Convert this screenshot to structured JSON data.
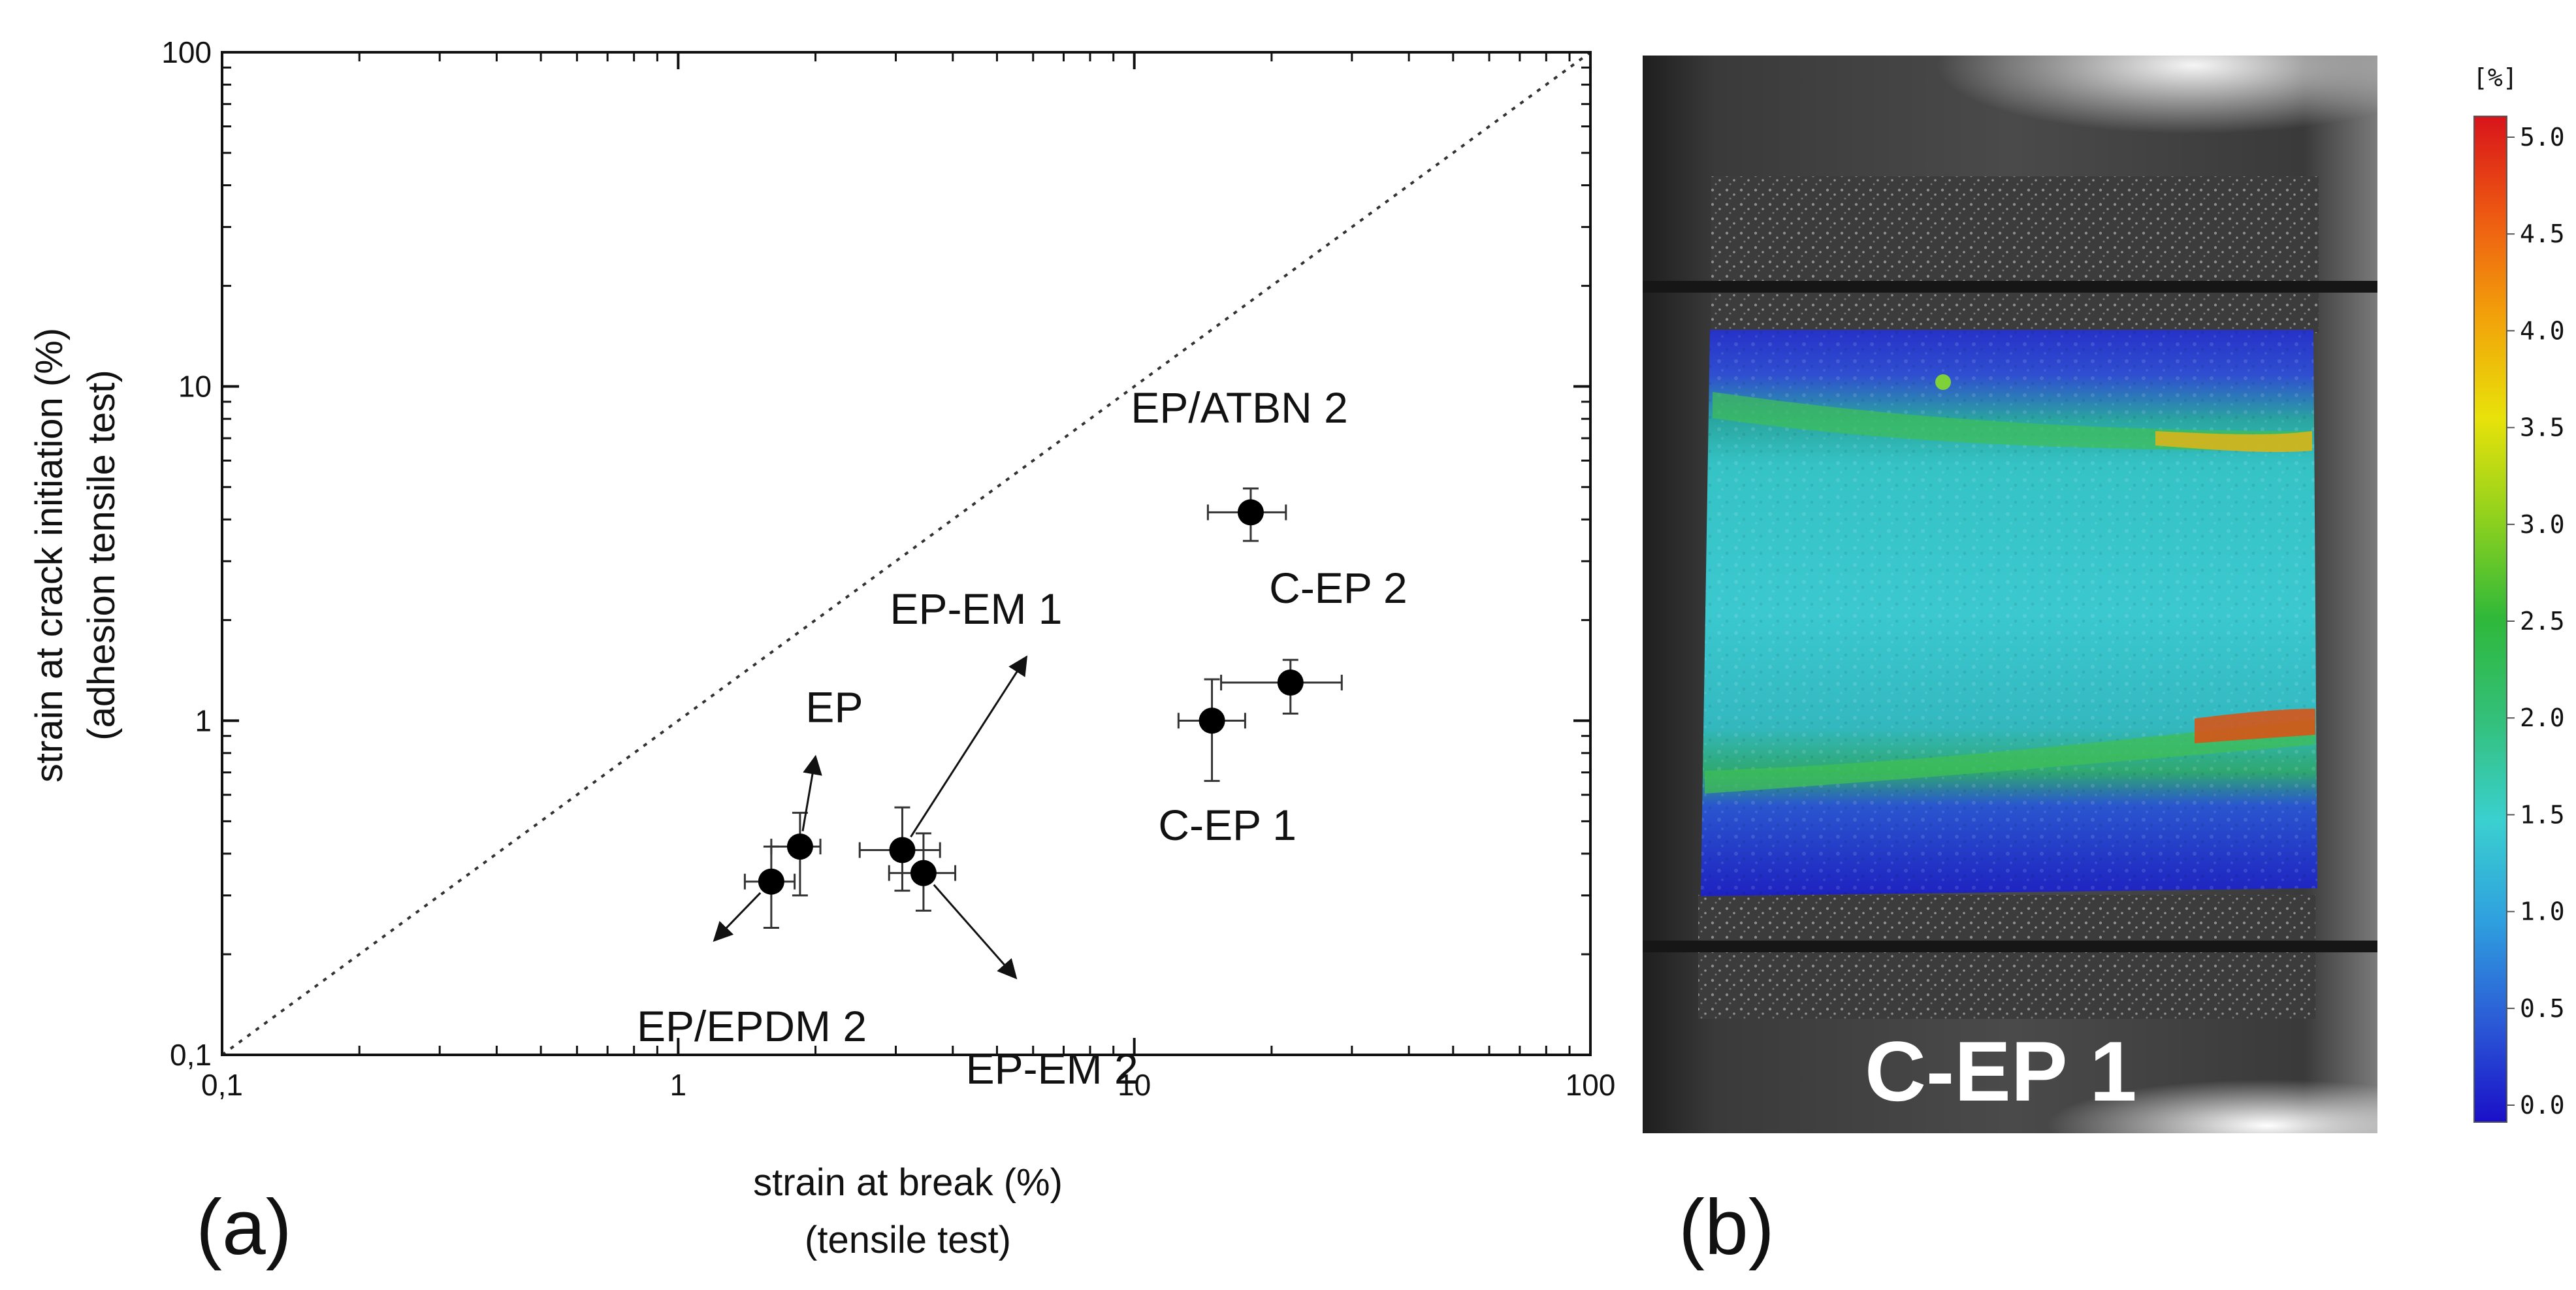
{
  "chart_data": [
    {
      "type": "scatter",
      "panel_label": "(a)",
      "xlabel": [
        "strain at break (%)",
        "(tensile test)"
      ],
      "ylabel": [
        "strain at crack initiation (%)",
        "(adhesion tensile test)"
      ],
      "x_scale": "log",
      "y_scale": "log",
      "xlim": [
        0.1,
        100
      ],
      "ylim": [
        0.1,
        100
      ],
      "x_ticks": [
        0.1,
        1,
        10,
        100
      ],
      "x_tick_labels": [
        "0,1",
        "1",
        "10",
        "100"
      ],
      "y_ticks": [
        0.1,
        1,
        10,
        100
      ],
      "y_tick_labels": [
        "0,1",
        "1",
        "10",
        "100"
      ],
      "reference_line": "y = x (dotted)",
      "grid": false,
      "points": [
        {
          "label": "EP",
          "x": 1.85,
          "y": 0.42,
          "x_err": [
            1.6,
            2.05
          ],
          "y_err": [
            0.3,
            0.53
          ],
          "label_at": [
            2.2,
            0.99
          ],
          "arrow_to": [
            2.0,
            0.78
          ]
        },
        {
          "label": "EP/EPDM 2",
          "x": 1.6,
          "y": 0.33,
          "x_err": [
            1.4,
            1.8
          ],
          "y_err": [
            0.24,
            0.42
          ],
          "label_at": [
            1.45,
            0.11
          ],
          "arrow_to": [
            1.2,
            0.22
          ]
        },
        {
          "label": "EP-EM 1",
          "x": 3.1,
          "y": 0.41,
          "x_err": [
            2.5,
            3.75
          ],
          "y_err": [
            0.31,
            0.55
          ],
          "label_at": [
            4.5,
            1.95
          ],
          "arrow_to": [
            5.8,
            1.55
          ]
        },
        {
          "label": "EP-EM 2",
          "x": 3.45,
          "y": 0.35,
          "x_err": [
            2.9,
            4.05
          ],
          "y_err": [
            0.27,
            0.46
          ],
          "label_at": [
            6.6,
            0.082
          ],
          "arrow_to": [
            5.5,
            0.17
          ]
        },
        {
          "label": "C-EP 1",
          "x": 14.8,
          "y": 1.0,
          "x_err": [
            12.5,
            17.5
          ],
          "y_err": [
            0.66,
            1.33
          ],
          "label_at": [
            16.0,
            0.44
          ],
          "arrow_to": null
        },
        {
          "label": "C-EP 2",
          "x": 22.0,
          "y": 1.3,
          "x_err": [
            15.5,
            28.5
          ],
          "y_err": [
            1.05,
            1.52
          ],
          "label_at": [
            28.0,
            2.25
          ],
          "arrow_to": null
        },
        {
          "label": "EP/ATBN 2",
          "x": 18.0,
          "y": 4.2,
          "x_err": [
            14.5,
            21.5
          ],
          "y_err": [
            3.45,
            4.95
          ],
          "label_at": [
            17.0,
            7.8
          ],
          "arrow_to": null
        }
      ]
    },
    {
      "type": "heatmap",
      "panel_label": "(b)",
      "image_label": "C-EP 1",
      "colorbar_unit": "[%]",
      "colorbar_range": [
        0.0,
        5.0
      ],
      "colorbar_ticks": [
        "0.0",
        "0.5",
        "1.0",
        "1.5",
        "2.0",
        "2.5",
        "3.0",
        "3.5",
        "4.0",
        "4.5",
        "5.0"
      ],
      "colorbar_colors": [
        "#1a10c8",
        "#2b5bd6",
        "#2fa0df",
        "#3ad0cf",
        "#33c07a",
        "#2fb83a",
        "#8fd11e",
        "#e8e20a",
        "#f2a20a",
        "#ee5a12",
        "#d8141a"
      ]
    }
  ]
}
